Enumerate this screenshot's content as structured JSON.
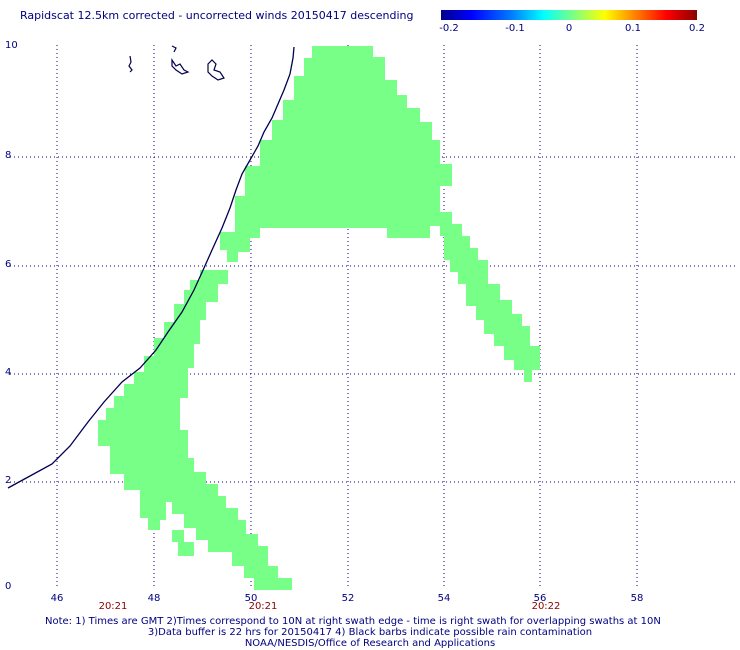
{
  "title": "Rapidscat 12.5km corrected - uncorrected winds 20150417 descending",
  "colorbar": {
    "ticks": [
      "-0.2",
      "-0.1",
      "0",
      "0.1",
      "0.2"
    ],
    "colors": [
      "#00008b",
      "#0000ff",
      "#00ffff",
      "#80ff80",
      "#ffff00",
      "#ff8000",
      "#ff0000",
      "#8b0000"
    ]
  },
  "axes": {
    "y_ticks": [
      "10",
      "8",
      "6",
      "4",
      "2",
      "0"
    ],
    "x_ticks": [
      "46",
      "48",
      "50",
      "52",
      "54",
      "56",
      "58"
    ]
  },
  "time_labels": [
    "20:21",
    "20:21",
    "20:22"
  ],
  "notes": {
    "line1": "Note: 1) Times are GMT 2)Times correspond to 10N at right swath edge - time is right swath for overlapping swaths at 10N",
    "line2": "3)Data buffer is 22 hrs for 20150417 4) Black barbs indicate possible rain contamination",
    "line3": "NOAA/NESDIS/Office of Research and Applications"
  },
  "swath_color": "#77ff88",
  "coast_color": "#000050",
  "grid": true
}
